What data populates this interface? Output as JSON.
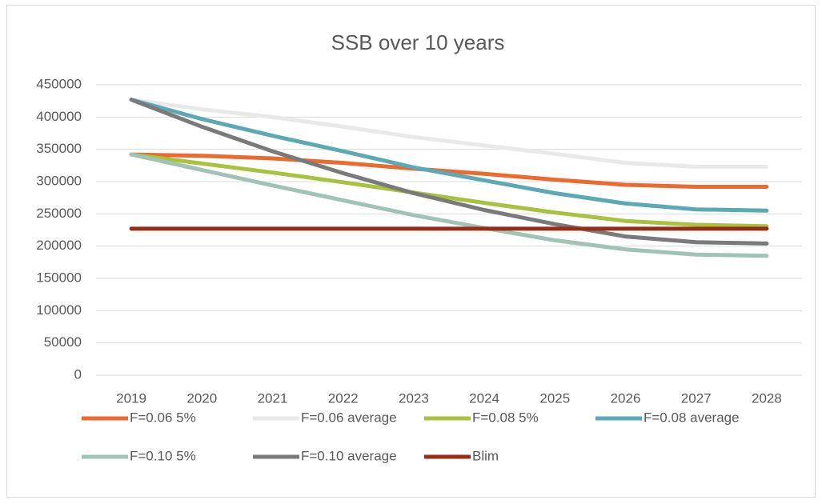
{
  "chart_data": {
    "type": "line",
    "title": "SSB over 10 years",
    "categories": [
      "2019",
      "2020",
      "2021",
      "2022",
      "2023",
      "2024",
      "2025",
      "2026",
      "2027",
      "2028"
    ],
    "series": [
      {
        "name": "F=0.06 5%",
        "color": "#ed6a2e",
        "values": [
          342000,
          340000,
          336000,
          329000,
          320000,
          312000,
          303000,
          295000,
          292000,
          292000
        ]
      },
      {
        "name": "F=0.06 average",
        "color": "#e9e9e9",
        "values": [
          427000,
          412000,
          400000,
          385000,
          369000,
          356000,
          343000,
          329000,
          323000,
          323000
        ]
      },
      {
        "name": "F=0.08 5%",
        "color": "#a8c23f",
        "values": [
          342000,
          328000,
          314000,
          299000,
          283000,
          267000,
          252000,
          239000,
          233000,
          231000
        ]
      },
      {
        "name": "F=0.08 average",
        "color": "#5ba9b4",
        "values": [
          427000,
          397000,
          371000,
          347000,
          322000,
          302000,
          282000,
          266000,
          257000,
          255000
        ]
      },
      {
        "name": "F=0.10 5%",
        "color": "#9fc4b5",
        "values": [
          342000,
          318000,
          294000,
          271000,
          248000,
          228000,
          209000,
          195000,
          187000,
          185000
        ]
      },
      {
        "name": "F=0.10 average",
        "color": "#7a7a7a",
        "values": [
          427000,
          385000,
          347000,
          313000,
          282000,
          256000,
          234000,
          215000,
          206000,
          204000
        ]
      },
      {
        "name": "Blim",
        "color": "#9a2b14",
        "values": [
          227000,
          227000,
          227000,
          227000,
          227000,
          227000,
          227000,
          227000,
          227000,
          227000
        ]
      }
    ],
    "ylim": [
      0,
      450000
    ],
    "yticks": [
      0,
      50000,
      100000,
      150000,
      200000,
      250000,
      300000,
      350000,
      400000,
      450000
    ],
    "grid": true
  }
}
